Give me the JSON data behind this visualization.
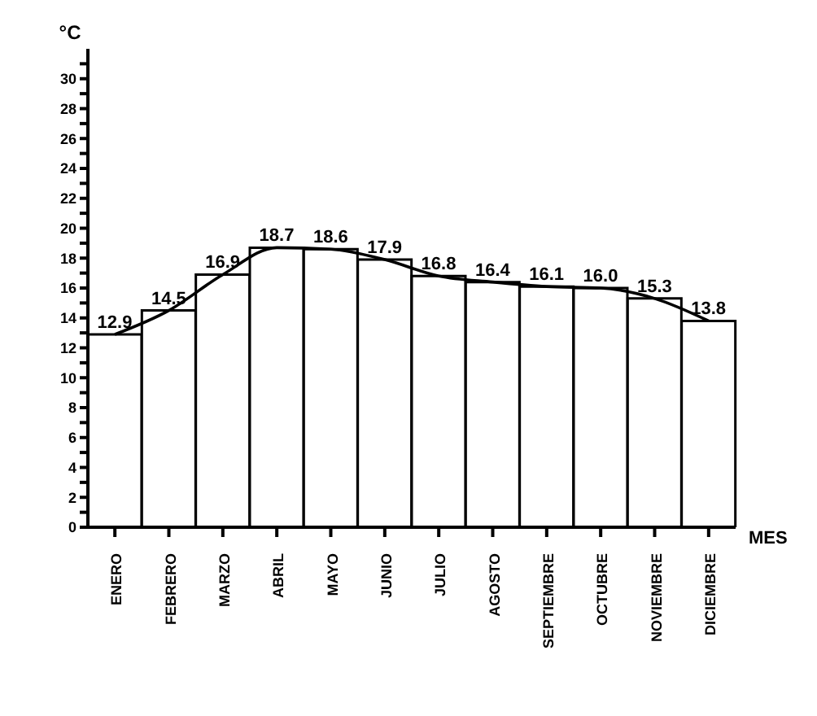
{
  "chart_data": {
    "type": "bar",
    "xlabel": "MES",
    "ylabel": "°C",
    "categories": [
      "ENERO",
      "FEBRERO",
      "MARZO",
      "ABRIL",
      "MAYO",
      "JUNIO",
      "JULIO",
      "AGOSTO",
      "SEPTIEMBRE",
      "OCTUBRE",
      "NOVIEMBRE",
      "DICIEMBRE"
    ],
    "series": [
      {
        "color": "#ffffff",
        "values": [
          12.9,
          14.5,
          16.9,
          18.7,
          18.6,
          17.9,
          16.8,
          16.4,
          16.1,
          16.0,
          15.3,
          13.8
        ],
        "value_labels": [
          "12.9",
          "14.5",
          "16.9",
          "18.7",
          "18.6",
          "17.9",
          "16.8",
          "16.4",
          "16.1",
          "16.0",
          "15.3",
          "13.8"
        ]
      },
      {
        "type": "line",
        "color": "#000000",
        "values": [
          12.9,
          14.5,
          16.9,
          18.7,
          18.6,
          17.9,
          16.8,
          16.4,
          16.1,
          16.0,
          15.3,
          13.8
        ]
      }
    ],
    "ylim": [
      0,
      32
    ],
    "yticks": [
      0,
      {
        "value": 1,
        "label": null
      },
      2,
      {
        "value": 3,
        "label": null
      },
      4,
      {
        "value": 5,
        "label": null
      },
      6,
      {
        "value": 7,
        "label": null
      },
      8,
      {
        "value": 9,
        "label": null
      },
      10,
      {
        "value": 11,
        "label": null
      },
      12,
      {
        "value": 13,
        "label": null
      },
      14,
      {
        "value": 15,
        "label": null
      },
      16,
      {
        "value": 17,
        "label": null
      },
      18,
      {
        "value": 19,
        "label": null
      },
      20,
      {
        "value": 21,
        "label": null
      },
      22,
      {
        "value": 23,
        "label": null
      },
      24,
      {
        "value": 25,
        "label": null
      },
      26,
      {
        "value": 27,
        "label": null
      },
      28,
      {
        "value": 29,
        "label": null
      },
      30,
      {
        "value": 31,
        "label": null
      }
    ],
    "grid": false,
    "legend": false,
    "marker": "none",
    "line_style": "solid"
  }
}
